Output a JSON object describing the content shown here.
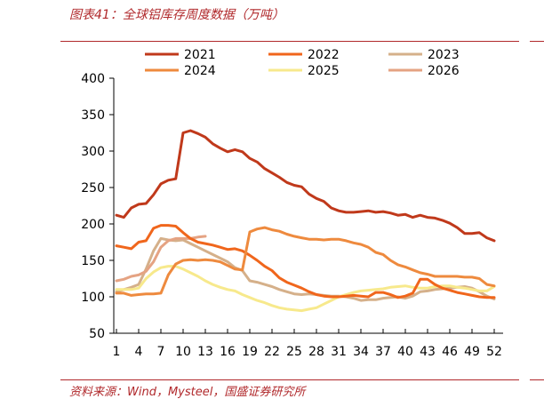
{
  "figure": {
    "title": "图表41：全球铝库存周度数据（万吨）",
    "source": "资料来源：Wind，Mysteel，国盛证券研究所"
  },
  "chart_data": {
    "type": "line",
    "title": "",
    "xlabel": "",
    "ylabel": "",
    "xlim": [
      1,
      52
    ],
    "ylim": [
      50,
      400
    ],
    "yticks": [
      50,
      100,
      150,
      200,
      250,
      300,
      350,
      400
    ],
    "xticks": [
      1,
      4,
      7,
      10,
      13,
      16,
      19,
      22,
      25,
      28,
      31,
      34,
      37,
      40,
      43,
      46,
      49,
      52
    ],
    "grid": false,
    "legend_position": "top",
    "series": [
      {
        "name": "2021",
        "color": "#c0391b",
        "x": [
          1,
          2,
          3,
          4,
          5,
          6,
          7,
          8,
          9,
          10,
          11,
          12,
          13,
          14,
          15,
          16,
          17,
          18,
          19,
          20,
          21,
          22,
          23,
          24,
          25,
          26,
          27,
          28,
          29,
          30,
          31,
          32,
          33,
          34,
          35,
          36,
          37,
          38,
          39,
          40,
          41,
          42,
          43,
          44,
          45,
          46,
          47,
          48,
          49,
          50,
          51,
          52
        ],
        "values": [
          212,
          209,
          222,
          227,
          228,
          240,
          255,
          260,
          262,
          325,
          328,
          324,
          319,
          310,
          304,
          299,
          302,
          299,
          290,
          285,
          276,
          270,
          264,
          257,
          253,
          251,
          241,
          235,
          231,
          222,
          218,
          216,
          216,
          217,
          218,
          216,
          217,
          215,
          212,
          213,
          209,
          212,
          209,
          208,
          205,
          201,
          195,
          187,
          187,
          188,
          181,
          177
        ]
      },
      {
        "name": "2022",
        "color": "#f0661c",
        "x": [
          1,
          2,
          3,
          4,
          5,
          6,
          7,
          8,
          9,
          10,
          11,
          12,
          13,
          14,
          15,
          16,
          17,
          18,
          19,
          20,
          21,
          22,
          23,
          24,
          25,
          26,
          27,
          28,
          29,
          30,
          31,
          32,
          33,
          34,
          35,
          36,
          37,
          38,
          39,
          40,
          41,
          42,
          43,
          44,
          45,
          46,
          47,
          48,
          49,
          50,
          51,
          52
        ],
        "values": [
          170,
          168,
          166,
          175,
          177,
          194,
          198,
          198,
          197,
          188,
          180,
          175,
          173,
          171,
          168,
          165,
          166,
          163,
          157,
          150,
          142,
          136,
          126,
          120,
          116,
          112,
          107,
          103,
          101,
          100,
          100,
          101,
          102,
          101,
          100,
          106,
          106,
          103,
          99,
          101,
          105,
          124,
          124,
          117,
          112,
          109,
          106,
          104,
          102,
          100,
          99,
          99
        ]
      },
      {
        "name": "2023",
        "color": "#d5b08a",
        "x": [
          1,
          2,
          3,
          4,
          5,
          6,
          7,
          8,
          9,
          10,
          11,
          12,
          13,
          14,
          15,
          16,
          17,
          18,
          19,
          20,
          21,
          22,
          23,
          24,
          25,
          26,
          27,
          28,
          29,
          30,
          31,
          32,
          33,
          34,
          35,
          36,
          37,
          38,
          39,
          40,
          41,
          42,
          43,
          44,
          45,
          46,
          47,
          48,
          49,
          50,
          51,
          52
        ],
        "values": [
          107,
          110,
          113,
          117,
          138,
          163,
          180,
          178,
          177,
          178,
          173,
          168,
          163,
          158,
          153,
          148,
          140,
          136,
          122,
          120,
          117,
          114,
          110,
          107,
          104,
          103,
          104,
          103,
          102,
          101,
          101,
          100,
          98,
          95,
          96,
          96,
          98,
          99,
          100,
          98,
          101,
          107,
          108,
          110,
          111,
          112,
          113,
          114,
          112,
          107,
          101,
          97
        ]
      },
      {
        "name": "2024",
        "color": "#ee8a3e",
        "x": [
          1,
          2,
          3,
          4,
          5,
          6,
          7,
          8,
          9,
          10,
          11,
          12,
          13,
          14,
          15,
          16,
          17,
          18,
          19,
          20,
          21,
          22,
          23,
          24,
          25,
          26,
          27,
          28,
          29,
          30,
          31,
          32,
          33,
          34,
          35,
          36,
          37,
          38,
          39,
          40,
          41,
          42,
          43,
          44,
          45,
          46,
          47,
          48,
          49,
          50,
          51,
          52
        ],
        "values": [
          105,
          105,
          102,
          103,
          104,
          104,
          105,
          130,
          145,
          150,
          151,
          150,
          151,
          150,
          148,
          143,
          138,
          137,
          189,
          193,
          195,
          192,
          190,
          186,
          183,
          181,
          179,
          179,
          178,
          179,
          179,
          177,
          174,
          172,
          168,
          161,
          158,
          150,
          144,
          141,
          137,
          133,
          131,
          128,
          128,
          128,
          128,
          127,
          127,
          125,
          117,
          115
        ]
      },
      {
        "name": "2025",
        "color": "#f7e98c",
        "x": [
          1,
          2,
          3,
          4,
          5,
          6,
          7,
          8,
          9,
          10,
          11,
          12,
          13,
          14,
          15,
          16,
          17,
          18,
          19,
          20,
          21,
          22,
          23,
          24,
          25,
          26,
          27,
          28,
          29,
          30,
          31,
          32,
          33,
          34,
          35,
          36,
          37,
          38,
          39,
          40,
          41,
          42,
          43,
          44,
          45,
          46,
          47,
          48,
          49,
          50,
          51,
          52
        ],
        "values": [
          110,
          110,
          110,
          112,
          125,
          134,
          140,
          142,
          142,
          138,
          133,
          128,
          122,
          117,
          113,
          110,
          108,
          103,
          99,
          95,
          92,
          88,
          85,
          83,
          82,
          81,
          83,
          85,
          90,
          95,
          100,
          103,
          106,
          108,
          109,
          110,
          111,
          113,
          114,
          115,
          113,
          112,
          112,
          114,
          115,
          115,
          113,
          112,
          110,
          108,
          108,
          114
        ]
      },
      {
        "name": "2026",
        "color": "#e5a383",
        "x": [
          1,
          2,
          3,
          4,
          5,
          6,
          7,
          8,
          9,
          10,
          11,
          12,
          13
        ],
        "values": [
          122,
          124,
          128,
          130,
          135,
          148,
          168,
          177,
          180,
          180,
          180,
          182,
          183
        ]
      }
    ]
  }
}
